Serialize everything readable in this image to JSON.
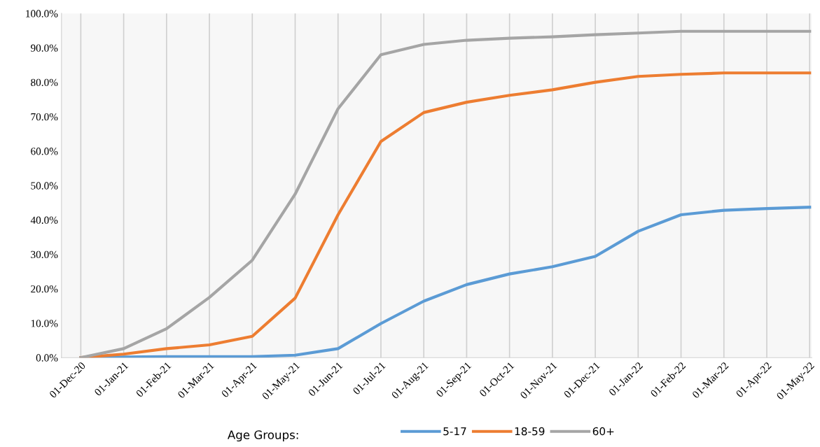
{
  "chart_data": {
    "type": "line",
    "categories": [
      "01-Dec-20",
      "01-Jan-21",
      "01-Feb-21",
      "01-Mar-21",
      "01-Apr-21",
      "01-May-21",
      "01-Jun-21",
      "01-Jul-21",
      "01-Aug-21",
      "01-Sep-21",
      "01-Oct-21",
      "01-Nov-21",
      "01-Dec-21",
      "01-Jan-22",
      "01-Feb-22",
      "01-Mar-22",
      "01-Apr-22",
      "01-May-22"
    ],
    "series": [
      {
        "name": "5-17",
        "color": "#5b9bd5",
        "values": [
          0,
          0.2,
          0.3,
          0.3,
          0.3,
          0.7,
          2.6,
          9.9,
          16.4,
          21.2,
          24.3,
          26.4,
          29.4,
          36.7,
          41.5,
          42.8,
          43.3,
          43.7
        ]
      },
      {
        "name": "18-59",
        "color": "#ed7d31",
        "values": [
          0,
          1.0,
          2.6,
          3.7,
          6.2,
          17.3,
          41.5,
          62.8,
          71.2,
          74.2,
          76.2,
          77.8,
          80.0,
          81.7,
          82.3,
          82.7,
          82.7,
          82.7
        ]
      },
      {
        "name": "60+",
        "color": "#a5a5a5",
        "values": [
          0,
          2.6,
          8.4,
          17.5,
          28.3,
          47.5,
          72.3,
          88.0,
          91.0,
          92.2,
          92.8,
          93.2,
          93.8,
          94.3,
          94.8,
          94.8,
          94.8,
          94.8
        ]
      }
    ],
    "ylim": [
      0,
      100
    ],
    "yticks": [
      {
        "value": 0,
        "label": "0.0%"
      },
      {
        "value": 10,
        "label": "10.0%"
      },
      {
        "value": 20,
        "label": "20.0%"
      },
      {
        "value": 30,
        "label": "30.0%"
      },
      {
        "value": 40,
        "label": "40.0%"
      },
      {
        "value": 50,
        "label": "50.0%"
      },
      {
        "value": 60,
        "label": "60.0%"
      },
      {
        "value": 70,
        "label": "70.0%"
      },
      {
        "value": 80,
        "label": "80.0%"
      },
      {
        "value": 90,
        "label": "90.0%"
      },
      {
        "value": 100,
        "label": "100.0%"
      }
    ],
    "grid": "x",
    "legend": "bottom",
    "legend_title": "Age Groups:",
    "marker": "none",
    "line_style": "solid"
  }
}
